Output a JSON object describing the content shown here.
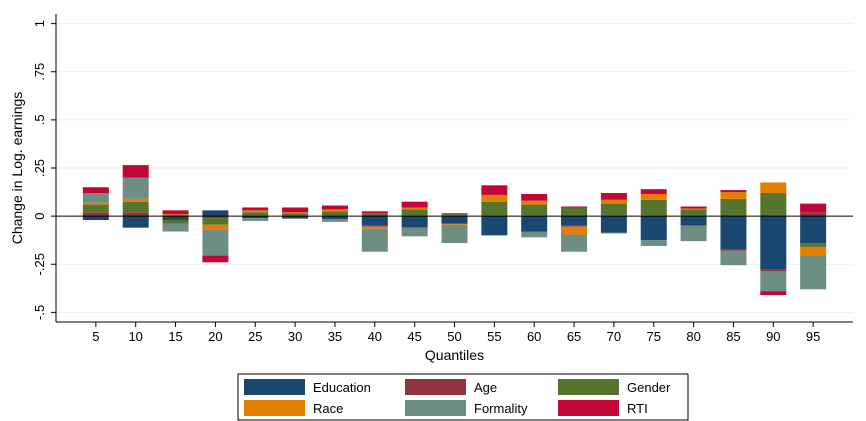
{
  "chart_data": {
    "type": "bar",
    "stacked": true,
    "xlabel": "Quantiles",
    "ylabel": "Change in Log. earnings",
    "ylim": [
      -0.55,
      1.05
    ],
    "yticks": [
      -0.5,
      -0.25,
      0,
      0.25,
      0.5,
      0.75,
      1
    ],
    "ytick_labels": [
      "-.5",
      "-.25",
      "0",
      ".25",
      ".5",
      ".75",
      "1"
    ],
    "grid": true,
    "legend_position": "bottom",
    "categories": [
      "5",
      "10",
      "15",
      "20",
      "25",
      "30",
      "35",
      "40",
      "45",
      "50",
      "55",
      "60",
      "65",
      "70",
      "75",
      "80",
      "85",
      "90",
      "95"
    ],
    "series": [
      {
        "name": "Education",
        "color": "#1a476f",
        "values": [
          -0.02,
          -0.06,
          -0.02,
          0.03,
          -0.01,
          -0.01,
          -0.015,
          -0.05,
          -0.06,
          -0.04,
          -0.1,
          -0.08,
          -0.05,
          -0.085,
          -0.125,
          -0.05,
          -0.175,
          -0.275,
          -0.14
        ]
      },
      {
        "name": "Age",
        "color": "#90353b",
        "values": [
          0.02,
          0.02,
          0.005,
          -0.01,
          0.005,
          0.005,
          0.005,
          -0.005,
          0.005,
          0.005,
          0.005,
          0.005,
          -0.005,
          0.005,
          0.005,
          0.005,
          -0.005,
          -0.01,
          0.02
        ]
      },
      {
        "name": "Gender",
        "color": "#55752f",
        "values": [
          0.04,
          0.055,
          -0.02,
          -0.035,
          0.015,
          0.01,
          0.02,
          0.015,
          0.03,
          0.005,
          0.07,
          0.055,
          0.045,
          0.06,
          0.08,
          0.03,
          0.09,
          0.12,
          -0.02
        ]
      },
      {
        "name": "Race",
        "color": "#e37e00",
        "values": [
          0.01,
          0.015,
          0.005,
          -0.025,
          0.01,
          0.005,
          0.01,
          -0.01,
          0.01,
          -0.005,
          0.035,
          0.02,
          -0.04,
          0.02,
          0.03,
          0.005,
          0.035,
          0.055,
          -0.045
        ]
      },
      {
        "name": "Formality",
        "color": "#6e8e84",
        "values": [
          0.05,
          0.11,
          -0.04,
          -0.135,
          -0.015,
          -0.005,
          -0.015,
          -0.12,
          -0.045,
          -0.095,
          0.0,
          -0.03,
          -0.09,
          -0.005,
          -0.03,
          -0.08,
          -0.075,
          -0.105,
          -0.175
        ]
      },
      {
        "name": "RTI",
        "color": "#c10534",
        "values": [
          0.03,
          0.065,
          0.02,
          -0.035,
          0.015,
          0.025,
          0.02,
          0.01,
          0.03,
          0.005,
          0.05,
          0.035,
          0.005,
          0.035,
          0.025,
          0.01,
          0.01,
          -0.02,
          0.045
        ]
      }
    ]
  }
}
